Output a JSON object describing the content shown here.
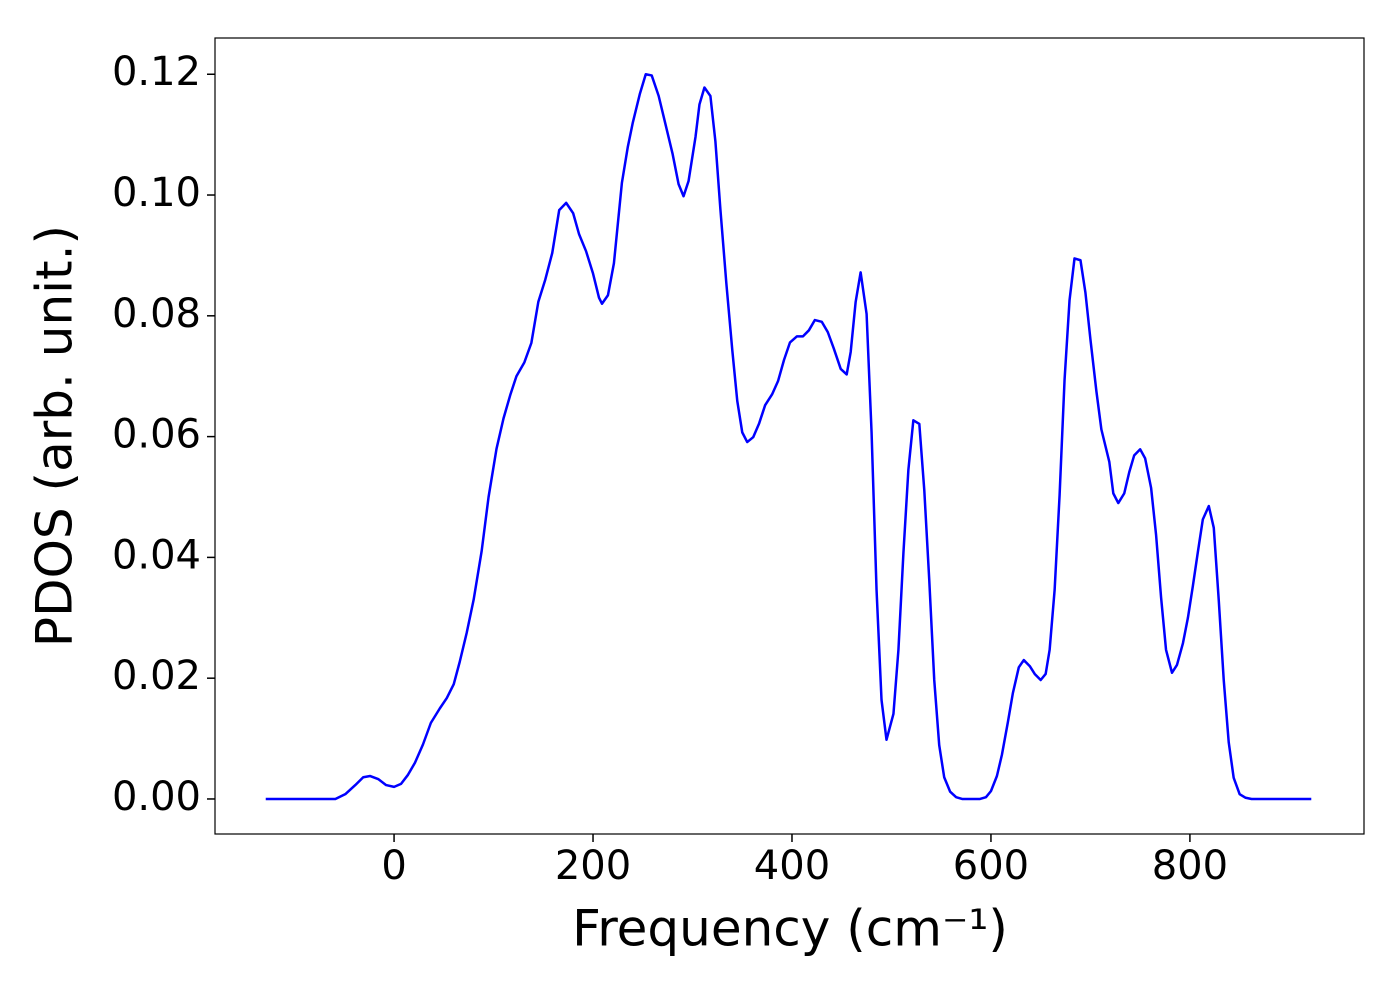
{
  "chart_data": {
    "type": "line",
    "xlabel": "Frequency (cm⁻¹)",
    "ylabel": "PDOS (arb. unit.)",
    "xlim": [
      -180,
      975
    ],
    "ylim": [
      -0.0058,
      0.126
    ],
    "xticks": [
      0,
      200,
      400,
      600,
      800
    ],
    "yticks": [
      {
        "value": 0,
        "label": "0.00"
      },
      {
        "value": 0.02,
        "label": "0.02"
      },
      {
        "value": 0.04,
        "label": "0.04"
      },
      {
        "value": 0.06,
        "label": "0.06"
      },
      {
        "value": 0.08,
        "label": "0.08"
      },
      {
        "value": 0.1,
        "label": "0.10"
      },
      {
        "value": 0.12,
        "label": "0.12"
      }
    ],
    "grid": false,
    "x": [
      -129,
      -59,
      -49,
      -39,
      -31,
      -24,
      -16,
      -8,
      0,
      7,
      14,
      21,
      29,
      37,
      46,
      53,
      60,
      66,
      73,
      80,
      88,
      95,
      103,
      110,
      117,
      123,
      131,
      138,
      145,
      152,
      159,
      166,
      173,
      180,
      186,
      193,
      200,
      206,
      209,
      215,
      221,
      229,
      235,
      240,
      247,
      253,
      259,
      266,
      273,
      280,
      286,
      291,
      296,
      303,
      307,
      312,
      318,
      323,
      328,
      334,
      340,
      345,
      350,
      355,
      361,
      367,
      373,
      380,
      386,
      392,
      398,
      405,
      411,
      417,
      423,
      430,
      436,
      442,
      449,
      455,
      459,
      464,
      469,
      475,
      480,
      485,
      490,
      495,
      502,
      507,
      512,
      517,
      522,
      528,
      533,
      538,
      543,
      548,
      553,
      559,
      565,
      571,
      589,
      595,
      600,
      606,
      611,
      617,
      622,
      628,
      633,
      639,
      644,
      650,
      655,
      659,
      664,
      669,
      674,
      679,
      684,
      690,
      695,
      700,
      706,
      711,
      719,
      723,
      728,
      734,
      739,
      744,
      750,
      755,
      761,
      766,
      771,
      776,
      782,
      787,
      793,
      798,
      803,
      808,
      813,
      819,
      824,
      829,
      834,
      839,
      844,
      850,
      856,
      862,
      922
    ],
    "series": [
      {
        "color": "#0000ff",
        "values": [
          0,
          0,
          0.0008,
          0.0023,
          0.0036,
          0.0038,
          0.0033,
          0.0023,
          0.002,
          0.0025,
          0.004,
          0.006,
          0.009,
          0.0126,
          0.015,
          0.0167,
          0.019,
          0.0227,
          0.0275,
          0.033,
          0.041,
          0.05,
          0.058,
          0.063,
          0.067,
          0.07,
          0.0723,
          0.0755,
          0.0823,
          0.086,
          0.0904,
          0.0975,
          0.0987,
          0.097,
          0.0935,
          0.0907,
          0.087,
          0.083,
          0.082,
          0.0834,
          0.0887,
          0.102,
          0.108,
          0.112,
          0.1167,
          0.12,
          0.1198,
          0.1164,
          0.1116,
          0.1068,
          0.1018,
          0.0998,
          0.1023,
          0.1096,
          0.115,
          0.1178,
          0.1164,
          0.1089,
          0.0977,
          0.0854,
          0.0743,
          0.0659,
          0.0607,
          0.0591,
          0.0599,
          0.0622,
          0.0652,
          0.067,
          0.0692,
          0.0727,
          0.0756,
          0.0766,
          0.0766,
          0.0776,
          0.0793,
          0.079,
          0.0773,
          0.0746,
          0.0712,
          0.0703,
          0.074,
          0.0823,
          0.0872,
          0.0803,
          0.0607,
          0.0346,
          0.0164,
          0.0098,
          0.0141,
          0.0247,
          0.0407,
          0.0545,
          0.0627,
          0.0621,
          0.0511,
          0.0362,
          0.0197,
          0.0089,
          0.0036,
          0.0012,
          0.0003,
          0,
          0,
          0.0003,
          0.0013,
          0.0038,
          0.0073,
          0.0127,
          0.0175,
          0.0218,
          0.023,
          0.022,
          0.0207,
          0.0197,
          0.0207,
          0.0247,
          0.0346,
          0.0503,
          0.0694,
          0.0826,
          0.0895,
          0.0892,
          0.0838,
          0.0761,
          0.0675,
          0.0612,
          0.0558,
          0.0506,
          0.049,
          0.0506,
          0.0541,
          0.0569,
          0.0579,
          0.0564,
          0.0515,
          0.0437,
          0.0334,
          0.0247,
          0.0209,
          0.0222,
          0.0258,
          0.03,
          0.0353,
          0.0409,
          0.0463,
          0.0485,
          0.0449,
          0.0329,
          0.0197,
          0.0094,
          0.0035,
          0.0008,
          0.0002,
          0,
          0
        ]
      }
    ]
  }
}
